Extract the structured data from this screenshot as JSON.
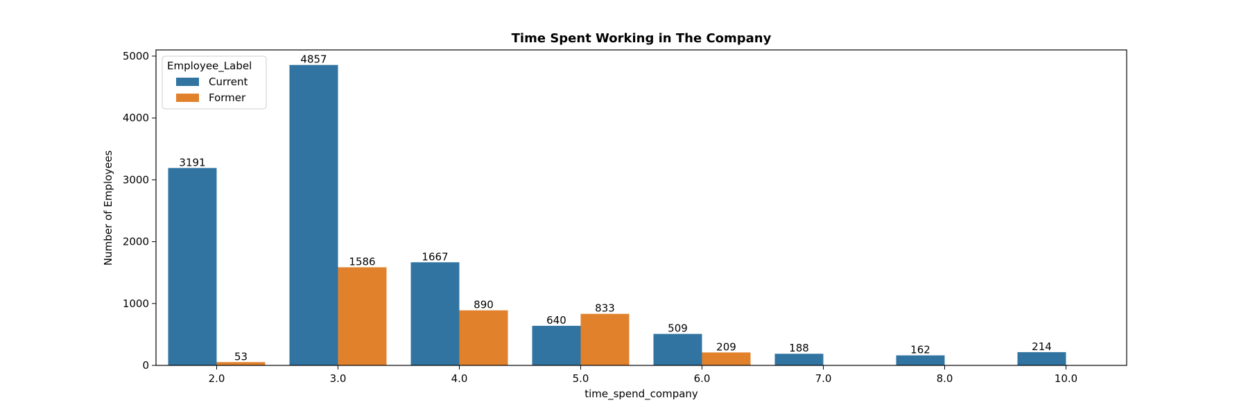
{
  "chart_data": {
    "type": "bar",
    "title": "Time Spent Working in The Company",
    "xlabel": "time_spend_company",
    "ylabel": "Number of Employees",
    "categories": [
      "2.0",
      "3.0",
      "4.0",
      "5.0",
      "6.0",
      "7.0",
      "8.0",
      "10.0"
    ],
    "series": [
      {
        "name": "Current",
        "color": "#3274a1",
        "values": [
          3191,
          4857,
          1667,
          640,
          509,
          188,
          162,
          214
        ]
      },
      {
        "name": "Former",
        "color": "#e1812c",
        "values": [
          53,
          1586,
          890,
          833,
          209,
          null,
          null,
          null
        ]
      }
    ],
    "ylim": [
      0,
      5100
    ],
    "yticks": [
      0,
      1000,
      2000,
      3000,
      4000,
      5000
    ],
    "grid": false,
    "legend": {
      "title": "Employee_Label",
      "placement": "top-left"
    }
  }
}
